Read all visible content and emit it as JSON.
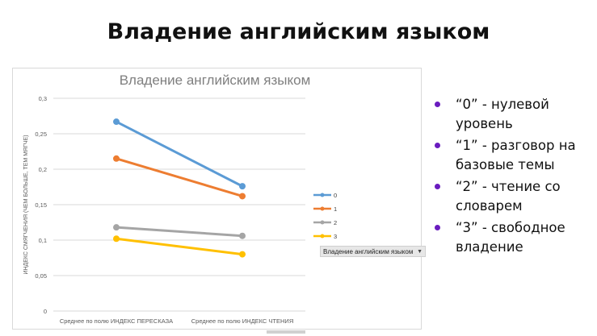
{
  "slide": {
    "title": "Владение английским языком"
  },
  "bullets": [
    "“0” - нулевой уровень",
    "“1” - разговор на базовые темы",
    "“2” - чтение со словарем",
    " “3” - свободное владение"
  ],
  "chart_data": {
    "type": "line",
    "title": "Владение английским языком",
    "ylabel": "ИНДЕКС СМЯГЧЕНИЯ (ЧЕМ БОЛЬШЕ, ТЕМ МЯГЧЕ)",
    "xlabel": "",
    "categories": [
      "Среднее по полю ИНДЕКС ПЕРЕСКАЗА",
      "Среднее по полю ИНДЕКС ЧТЕНИЯ"
    ],
    "ylim": [
      0,
      0.3
    ],
    "yticks": [
      "0",
      "0,05",
      "0,1",
      "0,15",
      "0,2",
      "0,25",
      "0,3"
    ],
    "grid": true,
    "legend_title": "Владение английским языком",
    "legend_position": "right",
    "series": [
      {
        "name": "0",
        "values": [
          0.267,
          0.176
        ],
        "color": "#5b9bd5"
      },
      {
        "name": "1",
        "values": [
          0.215,
          0.162
        ],
        "color": "#ed7d31"
      },
      {
        "name": "2",
        "values": [
          0.118,
          0.106
        ],
        "color": "#a5a5a5"
      },
      {
        "name": "3",
        "values": [
          0.102,
          0.08
        ],
        "color": "#ffc000"
      }
    ]
  },
  "colors": {
    "bullet": "#6a1cbf",
    "grid": "#d9d9d9",
    "title_gray": "#7f7f7f"
  },
  "icons": {
    "dropdown": "dropdown-arrow-icon"
  }
}
